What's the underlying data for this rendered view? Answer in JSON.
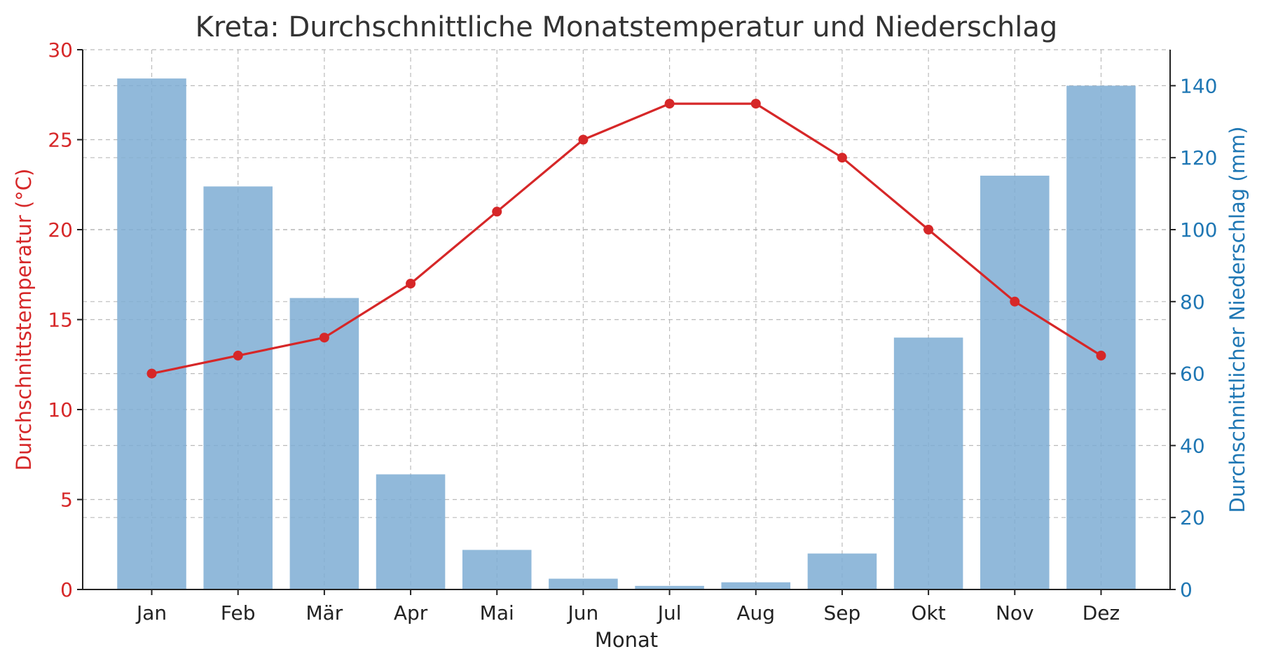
{
  "chart_data": {
    "type": "bar",
    "title": "Kreta: Durchschnittliche Monatstemperatur und Niederschlag",
    "xlabel": "Monat",
    "categories": [
      "Jan",
      "Feb",
      "Mär",
      "Apr",
      "Mai",
      "Jun",
      "Jul",
      "Aug",
      "Sep",
      "Okt",
      "Nov",
      "Dez"
    ],
    "y_left": {
      "label": "Durchschnittstemperatur (°C)",
      "range": [
        0,
        30
      ],
      "ticks": [
        "0",
        "5",
        "10",
        "15",
        "20",
        "25",
        "30"
      ],
      "color": "#d62728"
    },
    "y_right": {
      "label": "Durchschnittlicher Niederschlag (mm)",
      "range": [
        0,
        150
      ],
      "ticks": [
        "0",
        "20",
        "40",
        "60",
        "80",
        "100",
        "120",
        "140"
      ],
      "color": "#1f77b4"
    },
    "series": [
      {
        "type": "line",
        "axis": "left",
        "color": "#d62728",
        "values": [
          12,
          13,
          14,
          17,
          21,
          25,
          27,
          27,
          24,
          20,
          16,
          13
        ]
      },
      {
        "type": "bar",
        "axis": "right",
        "color": "#7eadd3",
        "values": [
          142,
          112,
          81,
          32,
          11,
          3,
          1,
          2,
          10,
          70,
          115,
          140
        ]
      }
    ],
    "grid": true
  }
}
